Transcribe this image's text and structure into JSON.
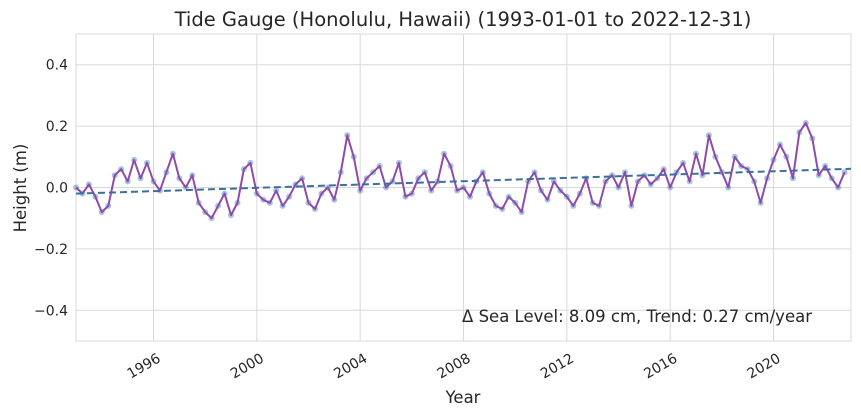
{
  "chart_data": {
    "type": "scatter",
    "title": "Tide Gauge (Honolulu, Hawaii) (1993-01-01 to 2022-12-31)",
    "xlabel": "Year",
    "ylabel": "Height (m)",
    "xlim": [
      "1993-01-01",
      "2022-12-31"
    ],
    "ylim": [
      -0.5,
      0.5
    ],
    "grid": true,
    "x_tick_labels": [
      "1996",
      "2000",
      "2004",
      "2008",
      "2012",
      "2016",
      "2020"
    ],
    "y_tick_labels": [
      "−0.4",
      "−0.2",
      "0.0",
      "0.2",
      "0.4"
    ],
    "annotation": "Δ Sea Level: 8.09 cm, Trend: 0.27 cm/year",
    "colors": {
      "daily_points": "#3b7fb5",
      "smoothed_line": "#8e4bab",
      "trend_line": "#3c6f9e",
      "grid": "#d9d9d9"
    },
    "series": [
      {
        "style": "scatter",
        "description_hidden": true,
        "x": [
          "1993-01",
          "1993-04",
          "1993-07",
          "1993-10",
          "1994-01",
          "1994-04",
          "1994-07",
          "1994-10",
          "1995-01",
          "1995-04",
          "1995-07",
          "1995-10",
          "1996-01",
          "1996-04",
          "1996-07",
          "1996-10",
          "1997-01",
          "1997-04",
          "1997-07",
          "1997-10",
          "1998-01",
          "1998-04",
          "1998-07",
          "1998-10",
          "1999-01",
          "1999-04",
          "1999-07",
          "1999-10",
          "2000-01",
          "2000-04",
          "2000-07",
          "2000-10",
          "2001-01",
          "2001-04",
          "2001-07",
          "2001-10",
          "2002-01",
          "2002-04",
          "2002-07",
          "2002-10",
          "2003-01",
          "2003-04",
          "2003-07",
          "2003-10",
          "2004-01",
          "2004-04",
          "2004-07",
          "2004-10",
          "2005-01",
          "2005-04",
          "2005-07",
          "2005-10",
          "2006-01",
          "2006-04",
          "2006-07",
          "2006-10",
          "2007-01",
          "2007-04",
          "2007-07",
          "2007-10",
          "2008-01",
          "2008-04",
          "2008-07",
          "2008-10",
          "2009-01",
          "2009-04",
          "2009-07",
          "2009-10",
          "2010-01",
          "2010-04",
          "2010-07",
          "2010-10",
          "2011-01",
          "2011-04",
          "2011-07",
          "2011-10",
          "2012-01",
          "2012-04",
          "2012-07",
          "2012-10",
          "2013-01",
          "2013-04",
          "2013-07",
          "2013-10",
          "2014-01",
          "2014-04",
          "2014-07",
          "2014-10",
          "2015-01",
          "2015-04",
          "2015-07",
          "2015-10",
          "2016-01",
          "2016-04",
          "2016-07",
          "2016-10",
          "2017-01",
          "2017-04",
          "2017-07",
          "2017-10",
          "2018-01",
          "2018-04",
          "2018-07",
          "2018-10",
          "2019-01",
          "2019-04",
          "2019-07",
          "2019-10",
          "2020-01",
          "2020-04",
          "2020-07",
          "2020-10",
          "2021-01",
          "2021-04",
          "2021-07",
          "2021-10",
          "2022-01",
          "2022-04",
          "2022-07",
          "2022-10"
        ],
        "y": [
          0.0,
          -0.02,
          0.01,
          -0.03,
          -0.08,
          -0.06,
          0.04,
          0.06,
          0.02,
          0.09,
          0.03,
          0.08,
          0.02,
          -0.01,
          0.05,
          0.11,
          0.03,
          0.0,
          0.04,
          -0.05,
          -0.08,
          -0.1,
          -0.06,
          -0.02,
          -0.09,
          -0.05,
          0.06,
          0.08,
          -0.02,
          -0.04,
          -0.05,
          -0.01,
          -0.06,
          -0.03,
          0.01,
          0.03,
          -0.05,
          -0.07,
          -0.02,
          0.0,
          -0.04,
          0.05,
          0.17,
          0.1,
          -0.01,
          0.03,
          0.05,
          0.07,
          0.0,
          0.02,
          0.08,
          -0.03,
          -0.02,
          0.03,
          0.05,
          -0.01,
          0.02,
          0.11,
          0.07,
          -0.01,
          0.0,
          -0.03,
          0.02,
          0.05,
          -0.02,
          -0.06,
          -0.07,
          -0.03,
          -0.05,
          -0.08,
          0.02,
          0.05,
          -0.01,
          -0.04,
          0.02,
          -0.01,
          -0.03,
          -0.06,
          -0.02,
          0.03,
          -0.05,
          -0.06,
          0.02,
          0.04,
          0.0,
          0.05,
          -0.06,
          0.02,
          0.04,
          0.01,
          0.03,
          0.06,
          0.0,
          0.05,
          0.08,
          0.02,
          0.11,
          0.04,
          0.17,
          0.1,
          0.05,
          0.0,
          0.1,
          0.07,
          0.06,
          0.02,
          -0.05,
          0.03,
          0.09,
          0.14,
          0.1,
          0.03,
          0.18,
          0.21,
          0.16,
          0.04,
          0.07,
          0.03,
          0.0,
          0.05
        ]
      },
      {
        "style": "line",
        "description_hidden": true,
        "x": [
          "1993-01",
          "1993-04",
          "1993-07",
          "1993-10",
          "1994-01",
          "1994-04",
          "1994-07",
          "1994-10",
          "1995-01",
          "1995-04",
          "1995-07",
          "1995-10",
          "1996-01",
          "1996-04",
          "1996-07",
          "1996-10",
          "1997-01",
          "1997-04",
          "1997-07",
          "1997-10",
          "1998-01",
          "1998-04",
          "1998-07",
          "1998-10",
          "1999-01",
          "1999-04",
          "1999-07",
          "1999-10",
          "2000-01",
          "2000-04",
          "2000-07",
          "2000-10",
          "2001-01",
          "2001-04",
          "2001-07",
          "2001-10",
          "2002-01",
          "2002-04",
          "2002-07",
          "2002-10",
          "2003-01",
          "2003-04",
          "2003-07",
          "2003-10",
          "2004-01",
          "2004-04",
          "2004-07",
          "2004-10",
          "2005-01",
          "2005-04",
          "2005-07",
          "2005-10",
          "2006-01",
          "2006-04",
          "2006-07",
          "2006-10",
          "2007-01",
          "2007-04",
          "2007-07",
          "2007-10",
          "2008-01",
          "2008-04",
          "2008-07",
          "2008-10",
          "2009-01",
          "2009-04",
          "2009-07",
          "2009-10",
          "2010-01",
          "2010-04",
          "2010-07",
          "2010-10",
          "2011-01",
          "2011-04",
          "2011-07",
          "2011-10",
          "2012-01",
          "2012-04",
          "2012-07",
          "2012-10",
          "2013-01",
          "2013-04",
          "2013-07",
          "2013-10",
          "2014-01",
          "2014-04",
          "2014-07",
          "2014-10",
          "2015-01",
          "2015-04",
          "2015-07",
          "2015-10",
          "2016-01",
          "2016-04",
          "2016-07",
          "2016-10",
          "2017-01",
          "2017-04",
          "2017-07",
          "2017-10",
          "2018-01",
          "2018-04",
          "2018-07",
          "2018-10",
          "2019-01",
          "2019-04",
          "2019-07",
          "2019-10",
          "2020-01",
          "2020-04",
          "2020-07",
          "2020-10",
          "2021-01",
          "2021-04",
          "2021-07",
          "2021-10",
          "2022-01",
          "2022-04",
          "2022-07",
          "2022-10"
        ],
        "y": [
          0.0,
          -0.02,
          0.01,
          -0.03,
          -0.08,
          -0.06,
          0.04,
          0.06,
          0.02,
          0.09,
          0.03,
          0.08,
          0.02,
          -0.01,
          0.05,
          0.11,
          0.03,
          0.0,
          0.04,
          -0.05,
          -0.08,
          -0.1,
          -0.06,
          -0.02,
          -0.09,
          -0.05,
          0.06,
          0.08,
          -0.02,
          -0.04,
          -0.05,
          -0.01,
          -0.06,
          -0.03,
          0.01,
          0.03,
          -0.05,
          -0.07,
          -0.02,
          0.0,
          -0.04,
          0.05,
          0.17,
          0.1,
          -0.01,
          0.03,
          0.05,
          0.07,
          0.0,
          0.02,
          0.08,
          -0.03,
          -0.02,
          0.03,
          0.05,
          -0.01,
          0.02,
          0.11,
          0.07,
          -0.01,
          0.0,
          -0.03,
          0.02,
          0.05,
          -0.02,
          -0.06,
          -0.07,
          -0.03,
          -0.05,
          -0.08,
          0.02,
          0.05,
          -0.01,
          -0.04,
          0.02,
          -0.01,
          -0.03,
          -0.06,
          -0.02,
          0.03,
          -0.05,
          -0.06,
          0.02,
          0.04,
          0.0,
          0.05,
          -0.06,
          0.02,
          0.04,
          0.01,
          0.03,
          0.06,
          0.0,
          0.05,
          0.08,
          0.02,
          0.11,
          0.04,
          0.17,
          0.1,
          0.05,
          0.0,
          0.1,
          0.07,
          0.06,
          0.02,
          -0.05,
          0.03,
          0.09,
          0.14,
          0.1,
          0.03,
          0.18,
          0.21,
          0.16,
          0.04,
          0.07,
          0.03,
          0.0,
          0.05
        ]
      },
      {
        "style": "dashed-line",
        "description_hidden": true,
        "x": [
          "1993-01-01",
          "2022-12-31"
        ],
        "y": [
          -0.02,
          0.061
        ]
      }
    ]
  }
}
